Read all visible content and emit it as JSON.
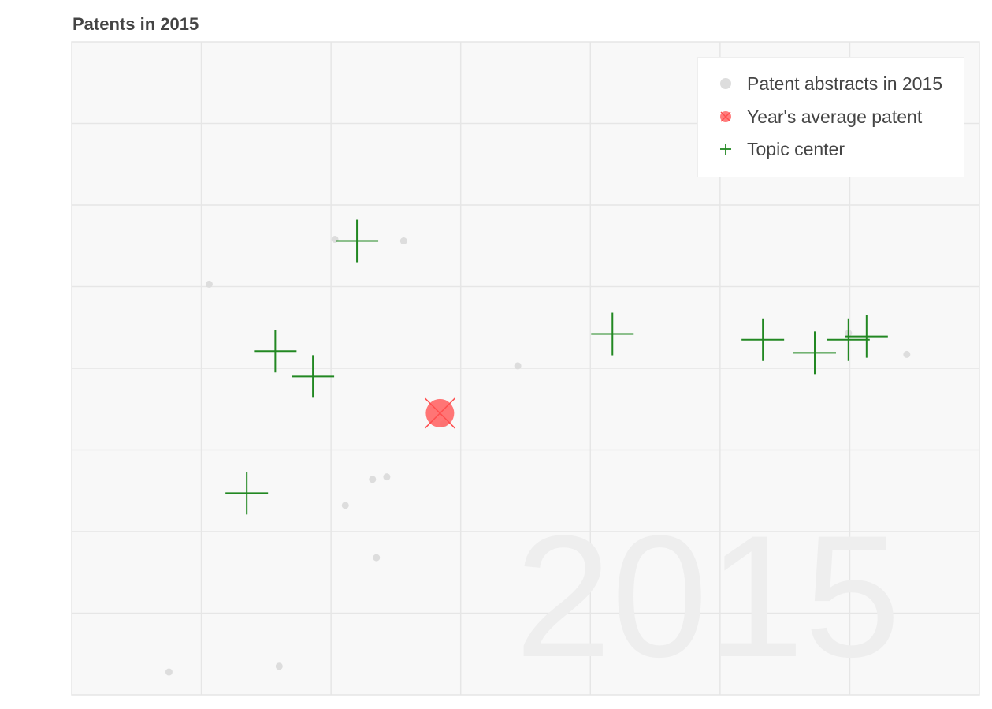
{
  "chart_data": {
    "type": "scatter",
    "title": "Patents in 2015",
    "watermark": "2015",
    "xlabel": "",
    "ylabel": "",
    "xlim": [
      0,
      7
    ],
    "ylim": [
      0,
      8
    ],
    "grid": true,
    "legend_position": "top-right",
    "colors": {
      "background": "#f8f8f8",
      "grid": "#e6e6e6",
      "abstract_point": "#dddddd",
      "average": "#ff6666",
      "average_cross": "#ff4d4d",
      "topic_center": "#228822",
      "watermark": "#eeeeee",
      "title": "#444444"
    },
    "series": [
      {
        "name": "Patent abstracts in 2015",
        "marker": "circle",
        "points": [
          [
            2.03,
            5.58
          ],
          [
            2.56,
            5.56
          ],
          [
            1.06,
            5.03
          ],
          [
            3.44,
            4.03
          ],
          [
            2.87,
            3.32
          ],
          [
            2.32,
            2.64
          ],
          [
            2.43,
            2.67
          ],
          [
            2.11,
            2.32
          ],
          [
            2.35,
            1.68
          ],
          [
            0.75,
            0.28
          ],
          [
            1.6,
            0.35
          ],
          [
            5.99,
            4.43
          ],
          [
            6.44,
            4.17
          ]
        ]
      },
      {
        "name": "Year's average patent",
        "marker": "circled-x",
        "points": [
          [
            2.84,
            3.45
          ]
        ]
      },
      {
        "name": "Topic center",
        "marker": "plus",
        "points": [
          [
            2.2,
            5.56
          ],
          [
            1.57,
            4.21
          ],
          [
            1.86,
            3.9
          ],
          [
            1.35,
            2.47
          ],
          [
            4.17,
            4.42
          ],
          [
            5.33,
            4.35
          ],
          [
            5.73,
            4.19
          ],
          [
            5.99,
            4.35
          ],
          [
            6.13,
            4.39
          ]
        ]
      }
    ]
  }
}
